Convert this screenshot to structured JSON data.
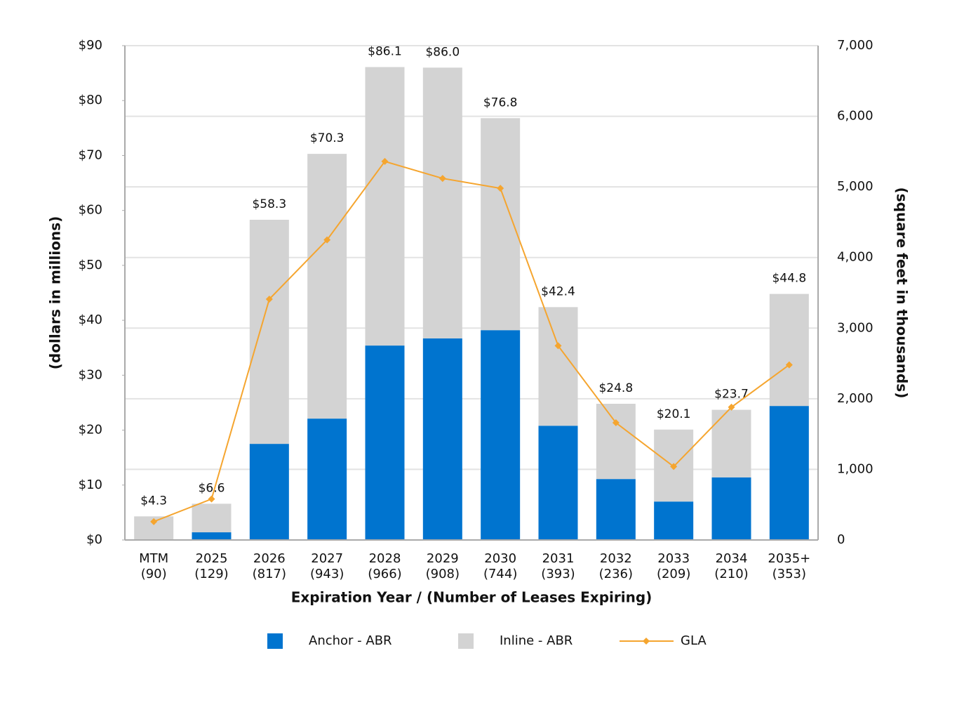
{
  "chart_data": {
    "type": "bar-line",
    "categories": [
      "MTM",
      "2025",
      "2026",
      "2027",
      "2028",
      "2029",
      "2030",
      "2031",
      "2032",
      "2033",
      "2034",
      "2035+"
    ],
    "category_sublabels": [
      "(90)",
      "(129)",
      "(817)",
      "(943)",
      "(966)",
      "(908)",
      "(744)",
      "(393)",
      "(236)",
      "(209)",
      "(210)",
      "(353)"
    ],
    "x_label": "Expiration Year / (Number of Leases Expiring)",
    "y_label": "(dollars in millions)",
    "y2_label": "(square feet in thousands)",
    "series": [
      {
        "name": "Anchor - ABR",
        "color": "#0074cf",
        "kind": "bar",
        "values": [
          0,
          1.4,
          17.5,
          22.1,
          35.4,
          36.7,
          38.2,
          20.8,
          11.1,
          7.0,
          11.4,
          24.4
        ]
      },
      {
        "name": "Inline - ABR",
        "color": "#d3d3d3",
        "kind": "bar",
        "values": [
          4.3,
          5.2,
          40.8,
          48.2,
          50.7,
          49.3,
          38.6,
          21.6,
          13.7,
          13.1,
          12.3,
          20.4
        ]
      },
      {
        "name": "GLA",
        "color": "#f5a52f",
        "kind": "line",
        "axis": "y2",
        "values": [
          260,
          580,
          3410,
          4250,
          5360,
          5120,
          4980,
          2750,
          1660,
          1040,
          1880,
          2480
        ]
      }
    ],
    "total_labels": [
      "$4.3",
      "$6.6",
      "$58.3",
      "$70.3",
      "$86.1",
      "$86.0",
      "$76.8",
      "$42.4",
      "$24.8",
      "$20.1",
      "$23.7",
      "$44.8"
    ],
    "ylim": [
      0,
      90
    ],
    "yticks": [
      {
        "value": 0,
        "label": "$0"
      },
      {
        "value": 10,
        "label": "$10"
      },
      {
        "value": 20,
        "label": "$20"
      },
      {
        "value": 30,
        "label": "$30"
      },
      {
        "value": 40,
        "label": "$40"
      },
      {
        "value": 50,
        "label": "$50"
      },
      {
        "value": 60,
        "label": "$60"
      },
      {
        "value": 70,
        "label": "$70"
      },
      {
        "value": 80,
        "label": "$80"
      },
      {
        "value": 90,
        "label": "$90"
      }
    ],
    "y2lim": [
      0,
      7000
    ],
    "y2ticks": [
      0,
      {
        "value": 1000,
        "label": "1,000"
      },
      {
        "value": 2000,
        "label": "2,000"
      },
      {
        "value": 3000,
        "label": "3,000"
      },
      {
        "value": 4000,
        "label": "4,000"
      },
      {
        "value": 5000,
        "label": "5,000"
      },
      {
        "value": 6000,
        "label": "6,000"
      },
      {
        "value": 7000,
        "label": "7,000"
      }
    ],
    "grid": true,
    "legend": "bottom"
  }
}
